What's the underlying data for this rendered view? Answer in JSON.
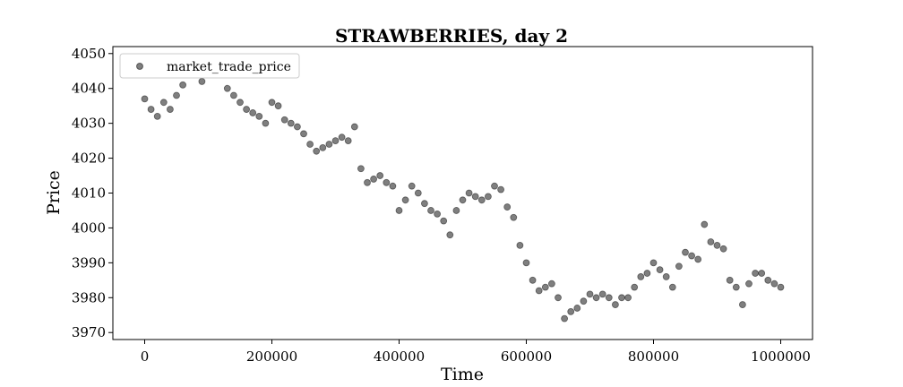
{
  "chart_data": {
    "type": "scatter",
    "title": "STRAWBERRIES, day 2",
    "xlabel": "Time",
    "ylabel": "Price",
    "xlim": [
      -50000,
      1050000
    ],
    "ylim": [
      3968,
      4052
    ],
    "xticks": [
      0,
      200000,
      400000,
      600000,
      800000,
      1000000
    ],
    "xtick_labels": [
      "0",
      "200000",
      "400000",
      "600000",
      "800000",
      "1000000"
    ],
    "yticks": [
      3970,
      3980,
      3990,
      4000,
      4010,
      4020,
      4030,
      4040,
      4050
    ],
    "ytick_labels": [
      "3970",
      "3980",
      "3990",
      "4000",
      "4010",
      "4020",
      "4030",
      "4040",
      "4050"
    ],
    "grid": false,
    "legend_position": "top-left",
    "marker_color": "#000000",
    "marker_opacity": 0.5,
    "series": [
      {
        "name": "market_trade_price",
        "x": [
          0,
          10000,
          20000,
          30000,
          40000,
          50000,
          60000,
          70000,
          80000,
          90000,
          100000,
          110000,
          120000,
          130000,
          140000,
          150000,
          160000,
          170000,
          180000,
          190000,
          200000,
          210000,
          220000,
          230000,
          240000,
          250000,
          260000,
          270000,
          280000,
          290000,
          300000,
          310000,
          320000,
          330000,
          340000,
          350000,
          360000,
          370000,
          380000,
          390000,
          400000,
          410000,
          420000,
          430000,
          440000,
          450000,
          460000,
          470000,
          480000,
          490000,
          500000,
          510000,
          520000,
          530000,
          540000,
          550000,
          560000,
          570000,
          580000,
          590000,
          600000,
          610000,
          620000,
          630000,
          640000,
          650000,
          660000,
          670000,
          680000,
          690000,
          700000,
          710000,
          720000,
          730000,
          740000,
          750000,
          760000,
          770000,
          780000,
          790000,
          800000,
          810000,
          820000,
          830000,
          840000,
          850000,
          860000,
          870000,
          880000,
          890000,
          900000,
          910000,
          920000,
          930000,
          940000,
          950000,
          960000,
          970000,
          980000,
          990000,
          1000000
        ],
        "y": [
          4037,
          4034,
          4032,
          4036,
          4034,
          4038,
          4041,
          4045,
          4044,
          4042,
          4045,
          4047,
          4045,
          4040,
          4038,
          4036,
          4034,
          4033,
          4032,
          4030,
          4036,
          4035,
          4031,
          4030,
          4029,
          4027,
          4024,
          4022,
          4023,
          4024,
          4025,
          4026,
          4025,
          4029,
          4017,
          4013,
          4014,
          4015,
          4013,
          4012,
          4005,
          4008,
          4012,
          4010,
          4007,
          4005,
          4004,
          4002,
          3998,
          4005,
          4008,
          4010,
          4009,
          4008,
          4009,
          4012,
          4011,
          4006,
          4003,
          3995,
          3990,
          3985,
          3982,
          3983,
          3984,
          3980,
          3974,
          3976,
          3977,
          3979,
          3981,
          3980,
          3981,
          3980,
          3978,
          3980,
          3980,
          3983,
          3986,
          3987,
          3990,
          3988,
          3986,
          3983,
          3989,
          3993,
          3992,
          3991,
          4001,
          3996,
          3995,
          3994,
          3985,
          3983,
          3978,
          3984,
          3987,
          3987,
          3985,
          3984,
          3983
        ]
      }
    ]
  }
}
